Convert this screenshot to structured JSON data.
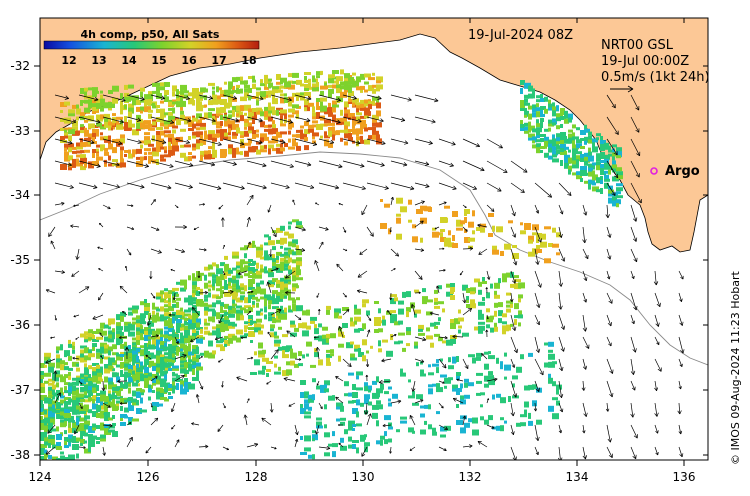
{
  "map": {
    "legend": {
      "title": "4h comp, p50, All Sats",
      "ticks": [
        "12",
        "13",
        "14",
        "15",
        "16",
        "17",
        "18"
      ]
    },
    "date_label": "19-Jul-2024 08Z",
    "product": {
      "line1": "NRT00 GSL",
      "line2": "19-Jul 00:00Z",
      "line3": "0.5m/s (1kt 24h)"
    },
    "argo_label": "Argo",
    "credit": "© IMOS 09-Aug-2024 11:23 Hobart",
    "x_ticks": [
      "124",
      "126",
      "128",
      "130",
      "132",
      "134",
      "136"
    ],
    "y_ticks": [
      "-32",
      "-33",
      "-34",
      "-35",
      "-36",
      "-37",
      "-38"
    ],
    "colors": {
      "land": "#fcc896",
      "argo_marker": "#e020e0",
      "colormap": [
        "#0a0aa0",
        "#1450e0",
        "#19b4d2",
        "#28c878",
        "#7dd22d",
        "#d2d228",
        "#f0a01e",
        "#dc5a14",
        "#b41e0f"
      ]
    }
  }
}
